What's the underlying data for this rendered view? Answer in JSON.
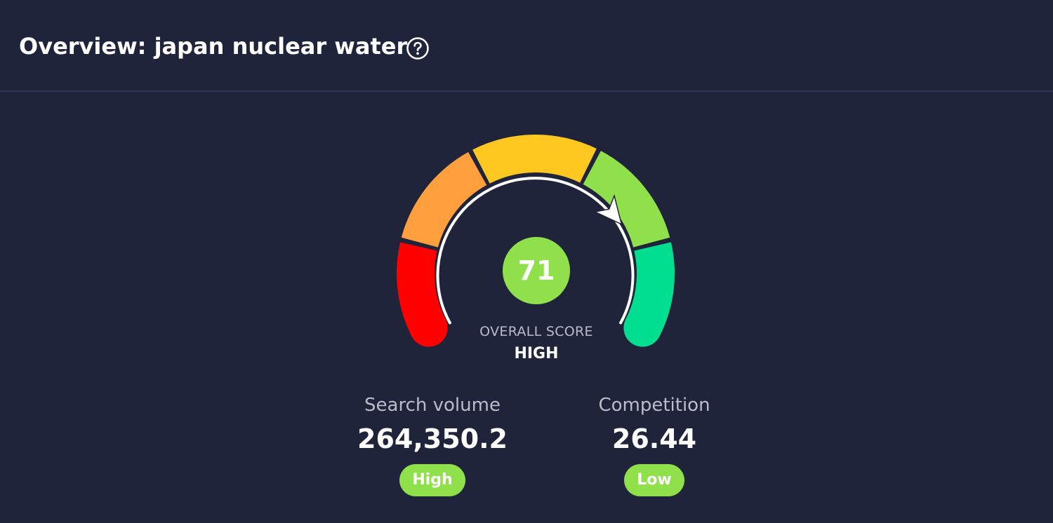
{
  "header": {
    "title": "Overview: japan nuclear water",
    "help_icon": "question-circle-icon"
  },
  "gauge": {
    "score": "71",
    "score_value": 71,
    "label": "OVERALL SCORE",
    "level": "HIGH",
    "segment_colors": [
      "#ff0000",
      "#ff9f3d",
      "#ffc820",
      "#8fe04b",
      "#00df8f"
    ],
    "score_color": "#8fe04b"
  },
  "metrics": {
    "search_volume": {
      "label": "Search volume",
      "value": "264,350.2",
      "badge": "High",
      "badge_color": "#8fe04b"
    },
    "competition": {
      "label": "Competition",
      "value": "26.44",
      "badge": "Low",
      "badge_color": "#8fe04b"
    }
  }
}
